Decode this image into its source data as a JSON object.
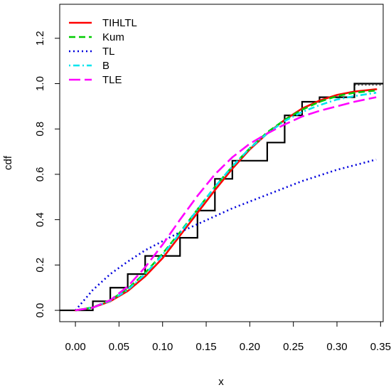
{
  "chart_data": {
    "type": "line",
    "xlabel": "x",
    "ylabel": "cdf",
    "xlim": [
      -0.018,
      0.353
    ],
    "ylim": [
      -0.05,
      1.35
    ],
    "xticks": [
      "0.00",
      "0.05",
      "0.10",
      "0.15",
      "0.20",
      "0.25",
      "0.30",
      "0.35"
    ],
    "yticks": [
      "0.0",
      "0.2",
      "0.4",
      "0.6",
      "0.8",
      "1.0",
      "1.2"
    ],
    "grid": false,
    "legend_position": "top-left",
    "series": [
      {
        "name": "TIHLTL",
        "color": "#ff0000",
        "dash": "solid",
        "x": [
          0,
          0.02,
          0.04,
          0.06,
          0.08,
          0.1,
          0.12,
          0.14,
          0.16,
          0.18,
          0.2,
          0.22,
          0.24,
          0.26,
          0.28,
          0.3,
          0.32,
          0.345
        ],
        "y": [
          0,
          0.012,
          0.04,
          0.085,
          0.15,
          0.23,
          0.33,
          0.43,
          0.53,
          0.625,
          0.71,
          0.78,
          0.84,
          0.89,
          0.925,
          0.95,
          0.965,
          0.975
        ]
      },
      {
        "name": "Kum",
        "color": "#00cc00",
        "dash": "dashed",
        "x": [
          0,
          0.02,
          0.04,
          0.06,
          0.08,
          0.1,
          0.12,
          0.14,
          0.16,
          0.18,
          0.2,
          0.22,
          0.24,
          0.26,
          0.28,
          0.3,
          0.32,
          0.345
        ],
        "y": [
          0,
          0.013,
          0.045,
          0.095,
          0.165,
          0.25,
          0.345,
          0.445,
          0.545,
          0.635,
          0.715,
          0.785,
          0.84,
          0.885,
          0.92,
          0.945,
          0.96,
          0.97
        ]
      },
      {
        "name": "TL",
        "color": "#0000dd",
        "dash": "dotted",
        "x": [
          0,
          0.02,
          0.04,
          0.06,
          0.08,
          0.1,
          0.12,
          0.14,
          0.16,
          0.18,
          0.2,
          0.22,
          0.24,
          0.26,
          0.28,
          0.3,
          0.32,
          0.345
        ],
        "y": [
          0,
          0.09,
          0.16,
          0.215,
          0.265,
          0.305,
          0.345,
          0.38,
          0.415,
          0.45,
          0.48,
          0.51,
          0.54,
          0.57,
          0.595,
          0.62,
          0.64,
          0.665
        ]
      },
      {
        "name": "B",
        "color": "#00e5ee",
        "dash": "dotdash",
        "x": [
          0,
          0.02,
          0.04,
          0.06,
          0.08,
          0.1,
          0.12,
          0.14,
          0.16,
          0.18,
          0.2,
          0.22,
          0.24,
          0.26,
          0.28,
          0.3,
          0.32,
          0.345
        ],
        "y": [
          0,
          0.012,
          0.042,
          0.09,
          0.16,
          0.245,
          0.34,
          0.445,
          0.545,
          0.635,
          0.715,
          0.78,
          0.835,
          0.875,
          0.905,
          0.93,
          0.945,
          0.96
        ]
      },
      {
        "name": "TLE",
        "color": "#ff00ff",
        "dash": "longdash",
        "x": [
          0,
          0.02,
          0.04,
          0.06,
          0.08,
          0.1,
          0.12,
          0.14,
          0.16,
          0.18,
          0.2,
          0.22,
          0.24,
          0.26,
          0.28,
          0.3,
          0.32,
          0.345
        ],
        "y": [
          0,
          0.012,
          0.045,
          0.105,
          0.19,
          0.29,
          0.4,
          0.505,
          0.6,
          0.675,
          0.735,
          0.78,
          0.82,
          0.855,
          0.88,
          0.9,
          0.92,
          0.94
        ]
      }
    ],
    "empirical_cdf": {
      "color": "#000000",
      "jumps": [
        0.02,
        0.04,
        0.06,
        0.08,
        0.1,
        0.12,
        0.14,
        0.16,
        0.18,
        0.22,
        0.24,
        0.26,
        0.28,
        0.32
      ],
      "levels": [
        0.04,
        0.1,
        0.16,
        0.24,
        0.24,
        0.32,
        0.44,
        0.58,
        0.66,
        0.74,
        0.86,
        0.92,
        0.94,
        1.0
      ]
    }
  }
}
